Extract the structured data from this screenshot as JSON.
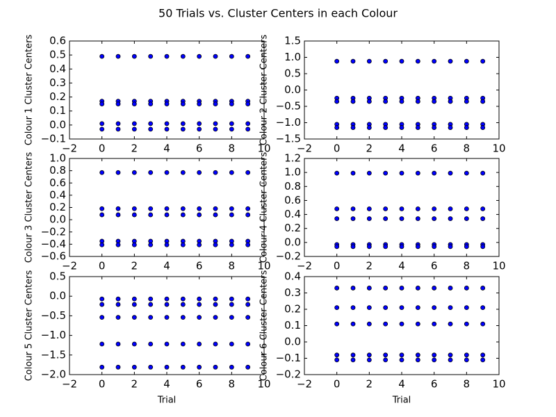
{
  "title": "50 Trials vs. Cluster Centers in each Colour",
  "chart_data": [
    {
      "type": "scatter",
      "ylabel": "Colour 1 Cluster Centers",
      "xlim": [
        -2,
        10
      ],
      "xticks": [
        {
          "value": -2,
          "label": "−2"
        },
        0,
        2,
        4,
        6,
        8,
        10
      ],
      "ylim": [
        -0.1,
        0.6
      ],
      "yticks": [
        {
          "value": -0.1,
          "label": "−0.1"
        },
        {
          "value": 0,
          "label": "0.0"
        },
        0.1,
        0.2,
        0.3,
        0.4,
        0.5,
        0.6
      ],
      "x": [
        0,
        1,
        2,
        3,
        4,
        5,
        6,
        7,
        8,
        9
      ],
      "series": [
        {
          "color": "#0000ff",
          "values": [
            0.49,
            0.49,
            0.49,
            0.49,
            0.49,
            0.49,
            0.49,
            0.49,
            0.49,
            0.49
          ]
        },
        {
          "color": "#0000ff",
          "values": [
            0.17,
            0.17,
            0.17,
            0.17,
            0.17,
            0.17,
            0.17,
            0.17,
            0.17,
            0.17
          ]
        },
        {
          "color": "#0000ff",
          "values": [
            0.15,
            0.15,
            0.15,
            0.15,
            0.15,
            0.15,
            0.15,
            0.15,
            0.15,
            0.15
          ]
        },
        {
          "color": "#0000ff",
          "values": [
            0.01,
            0.01,
            0.01,
            0.01,
            0.01,
            0.01,
            0.01,
            0.01,
            0.01,
            0.01
          ]
        },
        {
          "color": "#0000ff",
          "values": [
            -0.03,
            -0.03,
            -0.03,
            -0.03,
            -0.03,
            -0.03,
            -0.03,
            -0.03,
            -0.03,
            -0.03
          ]
        }
      ]
    },
    {
      "type": "scatter",
      "ylabel": "Colour 2 Cluster Centers",
      "xlim": [
        -2,
        10
      ],
      "xticks": [
        {
          "value": -2,
          "label": "−2"
        },
        0,
        2,
        4,
        6,
        8,
        10
      ],
      "ylim": [
        -1.5,
        1.5
      ],
      "yticks": [
        {
          "value": -1.5,
          "label": "−1.5"
        },
        {
          "value": -1,
          "label": "−1.0"
        },
        {
          "value": -0.5,
          "label": "−0.5"
        },
        {
          "value": 0,
          "label": "0.0"
        },
        0.5,
        {
          "value": 1,
          "label": "1.0"
        },
        1.5
      ],
      "x": [
        0,
        1,
        2,
        3,
        4,
        5,
        6,
        7,
        8,
        9
      ],
      "series": [
        {
          "color": "#0000ff",
          "values": [
            0.88,
            0.88,
            0.88,
            0.88,
            0.88,
            0.88,
            0.88,
            0.88,
            0.88,
            0.88
          ]
        },
        {
          "color": "#0000ff",
          "values": [
            -0.25,
            -0.25,
            -0.25,
            -0.25,
            -0.25,
            -0.25,
            -0.25,
            -0.25,
            -0.25,
            -0.25
          ]
        },
        {
          "color": "#0000ff",
          "values": [
            -0.35,
            -0.35,
            -0.35,
            -0.35,
            -0.35,
            -0.35,
            -0.35,
            -0.35,
            -0.35,
            -0.35
          ]
        },
        {
          "color": "#0000ff",
          "values": [
            -1.05,
            -1.05,
            -1.05,
            -1.05,
            -1.05,
            -1.05,
            -1.05,
            -1.05,
            -1.05,
            -1.05
          ]
        },
        {
          "color": "#0000ff",
          "values": [
            -1.15,
            -1.15,
            -1.15,
            -1.15,
            -1.15,
            -1.15,
            -1.15,
            -1.15,
            -1.15,
            -1.15
          ]
        }
      ]
    },
    {
      "type": "scatter",
      "ylabel": "Colour 3 Cluster Centers",
      "xlim": [
        -2,
        10
      ],
      "xticks": [
        {
          "value": -2,
          "label": "−2"
        },
        0,
        2,
        4,
        6,
        8,
        10
      ],
      "ylim": [
        -0.6,
        1.0
      ],
      "yticks": [
        {
          "value": -0.6,
          "label": "−0.6"
        },
        {
          "value": -0.4,
          "label": "−0.4"
        },
        {
          "value": -0.2,
          "label": "−0.2"
        },
        {
          "value": 0,
          "label": "0.0"
        },
        0.2,
        0.4,
        0.6,
        0.8,
        {
          "value": 1,
          "label": "1.0"
        }
      ],
      "x": [
        0,
        1,
        2,
        3,
        4,
        5,
        6,
        7,
        8,
        9
      ],
      "series": [
        {
          "color": "#0000ff",
          "values": [
            0.77,
            0.77,
            0.77,
            0.77,
            0.77,
            0.77,
            0.77,
            0.77,
            0.77,
            0.77
          ]
        },
        {
          "color": "#0000ff",
          "values": [
            0.18,
            0.18,
            0.18,
            0.18,
            0.18,
            0.18,
            0.18,
            0.18,
            0.18,
            0.18
          ]
        },
        {
          "color": "#0000ff",
          "values": [
            0.08,
            0.08,
            0.08,
            0.08,
            0.08,
            0.08,
            0.08,
            0.08,
            0.08,
            0.08
          ]
        },
        {
          "color": "#0000ff",
          "values": [
            -0.35,
            -0.35,
            -0.35,
            -0.35,
            -0.35,
            -0.35,
            -0.35,
            -0.35,
            -0.35,
            -0.35
          ]
        },
        {
          "color": "#0000ff",
          "values": [
            -0.41,
            -0.41,
            -0.41,
            -0.41,
            -0.41,
            -0.41,
            -0.41,
            -0.41,
            -0.41,
            -0.41
          ]
        }
      ]
    },
    {
      "type": "scatter",
      "ylabel": "Colour 4 Cluster Centers",
      "xlim": [
        -2,
        10
      ],
      "xticks": [
        {
          "value": -2,
          "label": "−2"
        },
        0,
        2,
        4,
        6,
        8,
        10
      ],
      "ylim": [
        -0.2,
        1.2
      ],
      "yticks": [
        {
          "value": -0.2,
          "label": "−0.2"
        },
        {
          "value": 0,
          "label": "0.0"
        },
        0.2,
        0.4,
        0.6,
        0.8,
        {
          "value": 1,
          "label": "1.0"
        },
        1.2
      ],
      "x": [
        0,
        1,
        2,
        3,
        4,
        5,
        6,
        7,
        8,
        9
      ],
      "series": [
        {
          "color": "#0000ff",
          "values": [
            0.99,
            0.99,
            0.99,
            0.99,
            0.99,
            0.99,
            0.99,
            0.99,
            0.99,
            0.99
          ]
        },
        {
          "color": "#0000ff",
          "values": [
            0.48,
            0.48,
            0.48,
            0.48,
            0.48,
            0.48,
            0.48,
            0.48,
            0.48,
            0.48
          ]
        },
        {
          "color": "#0000ff",
          "values": [
            0.34,
            0.34,
            0.34,
            0.34,
            0.34,
            0.34,
            0.34,
            0.34,
            0.34,
            0.34
          ]
        },
        {
          "color": "#0000ff",
          "values": [
            -0.03,
            -0.03,
            -0.03,
            -0.03,
            -0.03,
            -0.03,
            -0.03,
            -0.03,
            -0.03,
            -0.03
          ]
        },
        {
          "color": "#0000ff",
          "values": [
            -0.06,
            -0.06,
            -0.06,
            -0.06,
            -0.06,
            -0.06,
            -0.06,
            -0.06,
            -0.06,
            -0.06
          ]
        }
      ]
    },
    {
      "type": "scatter",
      "ylabel": "Colour 5 Cluster Centers",
      "xlabel": "Trial",
      "xlim": [
        -2,
        10
      ],
      "xticks": [
        {
          "value": -2,
          "label": "−2"
        },
        0,
        2,
        4,
        6,
        8,
        10
      ],
      "ylim": [
        -2.0,
        0.5
      ],
      "yticks": [
        {
          "value": -2,
          "label": "−2.0"
        },
        {
          "value": -1.5,
          "label": "−1.5"
        },
        {
          "value": -1,
          "label": "−1.0"
        },
        {
          "value": -0.5,
          "label": "−0.5"
        },
        {
          "value": 0,
          "label": "0.0"
        },
        0.5
      ],
      "x": [
        0,
        1,
        2,
        3,
        4,
        5,
        6,
        7,
        8,
        9
      ],
      "series": [
        {
          "color": "#0000ff",
          "values": [
            -0.07,
            -0.07,
            -0.07,
            -0.07,
            -0.07,
            -0.07,
            -0.07,
            -0.07,
            -0.07,
            -0.07
          ]
        },
        {
          "color": "#0000ff",
          "values": [
            -0.21,
            -0.21,
            -0.21,
            -0.21,
            -0.21,
            -0.21,
            -0.21,
            -0.21,
            -0.21,
            -0.21
          ]
        },
        {
          "color": "#0000ff",
          "values": [
            -0.54,
            -0.54,
            -0.54,
            -0.54,
            -0.54,
            -0.54,
            -0.54,
            -0.54,
            -0.54,
            -0.54
          ]
        },
        {
          "color": "#0000ff",
          "values": [
            -1.22,
            -1.22,
            -1.22,
            -1.22,
            -1.22,
            -1.22,
            -1.22,
            -1.22,
            -1.22,
            -1.22
          ]
        },
        {
          "color": "#0000ff",
          "values": [
            -1.81,
            -1.81,
            -1.81,
            -1.81,
            -1.81,
            -1.81,
            -1.81,
            -1.81,
            -1.81,
            -1.81
          ]
        }
      ]
    },
    {
      "type": "scatter",
      "ylabel": "Colour 6 Cluster Centers",
      "xlabel": "Trial",
      "xlim": [
        -2,
        10
      ],
      "xticks": [
        {
          "value": -2,
          "label": "−2"
        },
        0,
        2,
        4,
        6,
        8,
        10
      ],
      "ylim": [
        -0.2,
        0.4
      ],
      "yticks": [
        {
          "value": -0.2,
          "label": "−0.2"
        },
        {
          "value": -0.1,
          "label": "−0.1"
        },
        {
          "value": 0,
          "label": "0.0"
        },
        0.1,
        0.2,
        0.3,
        0.4
      ],
      "x": [
        0,
        1,
        2,
        3,
        4,
        5,
        6,
        7,
        8,
        9
      ],
      "series": [
        {
          "color": "#0000ff",
          "values": [
            0.33,
            0.33,
            0.33,
            0.33,
            0.33,
            0.33,
            0.33,
            0.33,
            0.33,
            0.33
          ]
        },
        {
          "color": "#0000ff",
          "values": [
            0.21,
            0.21,
            0.21,
            0.21,
            0.21,
            0.21,
            0.21,
            0.21,
            0.21,
            0.21
          ]
        },
        {
          "color": "#0000ff",
          "values": [
            0.11,
            0.11,
            0.11,
            0.11,
            0.11,
            0.11,
            0.11,
            0.11,
            0.11,
            0.11
          ]
        },
        {
          "color": "#0000ff",
          "values": [
            -0.08,
            -0.08,
            -0.08,
            -0.08,
            -0.08,
            -0.08,
            -0.08,
            -0.08,
            -0.08,
            -0.08
          ]
        },
        {
          "color": "#0000ff",
          "values": [
            -0.11,
            -0.11,
            -0.11,
            -0.11,
            -0.11,
            -0.11,
            -0.11,
            -0.11,
            -0.11,
            -0.11
          ]
        }
      ]
    }
  ]
}
